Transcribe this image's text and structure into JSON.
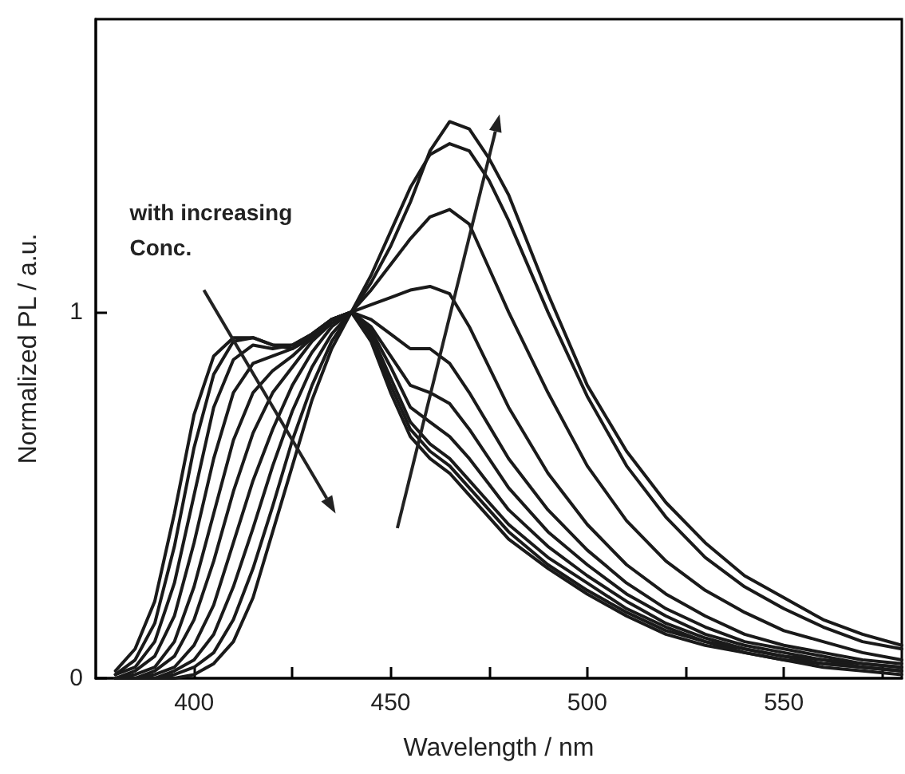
{
  "chart_data": {
    "type": "line",
    "xlabel": "Wavelength / nm",
    "ylabel": "Normalized PL / a.u.",
    "annotations": [
      "with increasing Conc."
    ],
    "x": [
      380,
      385,
      390,
      395,
      400,
      405,
      410,
      415,
      420,
      425,
      430,
      435,
      440,
      445,
      450,
      455,
      460,
      465,
      470,
      475,
      480,
      490,
      500,
      510,
      520,
      530,
      540,
      550,
      560,
      570,
      580
    ],
    "xlim": [
      375,
      580
    ],
    "xticks": [
      400,
      {
        "value": 425,
        "label": null
      },
      450,
      {
        "value": 475,
        "label": null
      },
      500,
      {
        "value": 525,
        "label": null
      },
      550,
      {
        "value": 575,
        "label": null
      }
    ],
    "ylim": [
      0,
      1.8
    ],
    "yticks": [
      0,
      1
    ],
    "grid": false,
    "marker": "none",
    "line_style": "solid",
    "series": [
      {
        "color": "#1a1a1a",
        "values": [
          0.02,
          0.08,
          0.21,
          0.45,
          0.72,
          0.88,
          0.93,
          0.93,
          0.91,
          0.9,
          0.93,
          0.98,
          1.0,
          0.92,
          0.78,
          0.66,
          0.6,
          0.56,
          0.5,
          0.44,
          0.38,
          0.3,
          0.23,
          0.17,
          0.12,
          0.09,
          0.07,
          0.05,
          0.03,
          0.02,
          0.01
        ]
      },
      {
        "color": "#1a1a1a",
        "values": [
          0.01,
          0.05,
          0.15,
          0.36,
          0.63,
          0.83,
          0.92,
          0.93,
          0.91,
          0.91,
          0.94,
          0.98,
          1.0,
          0.93,
          0.8,
          0.68,
          0.62,
          0.58,
          0.52,
          0.46,
          0.4,
          0.31,
          0.24,
          0.18,
          0.13,
          0.1,
          0.07,
          0.05,
          0.04,
          0.03,
          0.02
        ]
      },
      {
        "color": "#1a1a1a",
        "values": [
          0.01,
          0.03,
          0.1,
          0.26,
          0.5,
          0.74,
          0.87,
          0.91,
          0.9,
          0.91,
          0.94,
          0.98,
          1.0,
          0.94,
          0.82,
          0.7,
          0.64,
          0.6,
          0.54,
          0.48,
          0.42,
          0.33,
          0.26,
          0.19,
          0.14,
          0.1,
          0.08,
          0.06,
          0.04,
          0.03,
          0.02
        ]
      },
      {
        "color": "#1a1a1a",
        "values": [
          0,
          0.02,
          0.06,
          0.17,
          0.37,
          0.6,
          0.78,
          0.86,
          0.88,
          0.9,
          0.94,
          0.98,
          1.0,
          0.95,
          0.85,
          0.74,
          0.7,
          0.66,
          0.6,
          0.53,
          0.46,
          0.36,
          0.28,
          0.21,
          0.15,
          0.11,
          0.08,
          0.06,
          0.05,
          0.03,
          0.02
        ]
      },
      {
        "color": "#1a1a1a",
        "values": [
          0,
          0.01,
          0.03,
          0.1,
          0.25,
          0.45,
          0.65,
          0.78,
          0.84,
          0.88,
          0.93,
          0.98,
          1.0,
          0.96,
          0.88,
          0.8,
          0.78,
          0.75,
          0.68,
          0.6,
          0.52,
          0.4,
          0.31,
          0.23,
          0.17,
          0.12,
          0.09,
          0.07,
          0.05,
          0.04,
          0.03
        ]
      },
      {
        "color": "#1a1a1a",
        "values": [
          0,
          0,
          0.02,
          0.06,
          0.16,
          0.32,
          0.51,
          0.67,
          0.78,
          0.85,
          0.92,
          0.97,
          1.0,
          0.98,
          0.94,
          0.9,
          0.9,
          0.86,
          0.78,
          0.69,
          0.6,
          0.46,
          0.35,
          0.26,
          0.19,
          0.14,
          0.1,
          0.08,
          0.06,
          0.04,
          0.03
        ]
      },
      {
        "color": "#1a1a1a",
        "values": [
          0,
          0,
          0.01,
          0.03,
          0.09,
          0.2,
          0.37,
          0.54,
          0.68,
          0.8,
          0.89,
          0.96,
          1.0,
          1.02,
          1.04,
          1.06,
          1.07,
          1.05,
          0.96,
          0.85,
          0.74,
          0.56,
          0.42,
          0.31,
          0.23,
          0.17,
          0.12,
          0.09,
          0.07,
          0.05,
          0.04
        ]
      },
      {
        "color": "#1a1a1a",
        "values": [
          0,
          0,
          0,
          0.02,
          0.05,
          0.12,
          0.25,
          0.41,
          0.58,
          0.73,
          0.85,
          0.94,
          1.0,
          1.06,
          1.13,
          1.2,
          1.26,
          1.28,
          1.24,
          1.12,
          1.0,
          0.78,
          0.58,
          0.43,
          0.32,
          0.24,
          0.18,
          0.13,
          0.1,
          0.07,
          0.05
        ]
      },
      {
        "color": "#1a1a1a",
        "values": [
          0,
          0,
          0,
          0.01,
          0.03,
          0.07,
          0.16,
          0.3,
          0.47,
          0.65,
          0.8,
          0.92,
          1.0,
          1.1,
          1.22,
          1.34,
          1.43,
          1.46,
          1.44,
          1.36,
          1.25,
          1.0,
          0.77,
          0.58,
          0.44,
          0.33,
          0.25,
          0.19,
          0.14,
          0.1,
          0.08
        ]
      },
      {
        "color": "#1a1a1a",
        "values": [
          0,
          0,
          0,
          0,
          0.01,
          0.04,
          0.1,
          0.22,
          0.4,
          0.58,
          0.76,
          0.9,
          1.0,
          1.08,
          1.18,
          1.3,
          1.44,
          1.52,
          1.5,
          1.42,
          1.32,
          1.05,
          0.8,
          0.62,
          0.48,
          0.37,
          0.28,
          0.22,
          0.16,
          0.12,
          0.09
        ]
      }
    ]
  }
}
